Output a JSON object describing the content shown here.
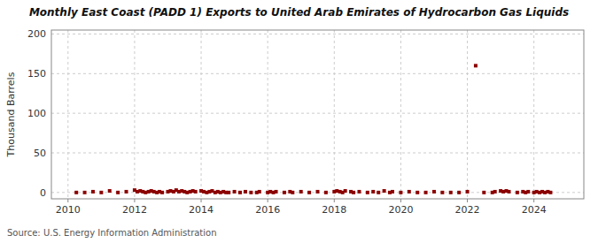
{
  "chart_data": {
    "type": "scatter",
    "title": "Monthly East Coast (PADD 1) Exports to United Arab Emirates of Hydrocarbon Gas Liquids",
    "y_label": "Thousand Barrels",
    "annotations": [
      "Source: U.S. Energy Information Administration"
    ],
    "color": "#8b0000",
    "marker": "square",
    "grid": true,
    "xlim": [
      2009.5,
      2025.5
    ],
    "xticks": [
      2010,
      2012,
      2014,
      2016,
      2018,
      2020,
      2022,
      2024
    ],
    "ylim": [
      -8,
      205
    ],
    "yticks": [
      0,
      50,
      100,
      150,
      200
    ],
    "x": [
      2010.25,
      2010.5,
      2010.75,
      2011.0,
      2011.25,
      2011.5,
      2011.75,
      2012.0,
      2012.08,
      2012.17,
      2012.25,
      2012.33,
      2012.42,
      2012.5,
      2012.58,
      2012.67,
      2012.75,
      2012.83,
      2013.0,
      2013.08,
      2013.17,
      2013.25,
      2013.33,
      2013.42,
      2013.5,
      2013.58,
      2013.67,
      2013.75,
      2013.83,
      2014.0,
      2014.08,
      2014.17,
      2014.25,
      2014.33,
      2014.42,
      2014.5,
      2014.58,
      2014.67,
      2014.75,
      2014.83,
      2015.0,
      2015.17,
      2015.33,
      2015.5,
      2015.67,
      2015.75,
      2016.0,
      2016.08,
      2016.17,
      2016.25,
      2016.5,
      2016.67,
      2016.75,
      2017.0,
      2017.25,
      2017.5,
      2017.75,
      2018.0,
      2018.08,
      2018.17,
      2018.25,
      2018.33,
      2018.5,
      2018.58,
      2018.75,
      2019.0,
      2019.17,
      2019.33,
      2019.5,
      2019.67,
      2019.75,
      2020.0,
      2020.25,
      2020.5,
      2020.75,
      2021.0,
      2021.25,
      2021.5,
      2021.75,
      2022.0,
      2022.25,
      2022.5,
      2022.75,
      2022.83,
      2023.0,
      2023.08,
      2023.17,
      2023.25,
      2023.5,
      2023.67,
      2023.75,
      2023.83,
      2024.0,
      2024.08,
      2024.17,
      2024.25,
      2024.33,
      2024.42,
      2024.5
    ],
    "values": [
      0,
      0,
      1,
      0,
      2,
      0,
      1,
      3,
      1,
      2,
      1,
      0,
      1,
      2,
      1,
      0,
      1,
      0,
      1,
      2,
      1,
      3,
      1,
      2,
      1,
      0,
      1,
      2,
      1,
      2,
      1,
      0,
      1,
      2,
      0,
      1,
      0,
      1,
      0,
      0,
      1,
      0,
      1,
      0,
      0,
      1,
      0,
      1,
      0,
      1,
      0,
      1,
      0,
      1,
      0,
      1,
      0,
      1,
      2,
      1,
      0,
      2,
      1,
      0,
      1,
      0,
      1,
      0,
      2,
      0,
      1,
      0,
      1,
      0,
      0,
      1,
      0,
      0,
      0,
      1,
      160,
      0,
      0,
      1,
      2,
      1,
      2,
      1,
      0,
      1,
      0,
      1,
      0,
      1,
      0,
      1,
      0,
      1,
      0
    ]
  }
}
